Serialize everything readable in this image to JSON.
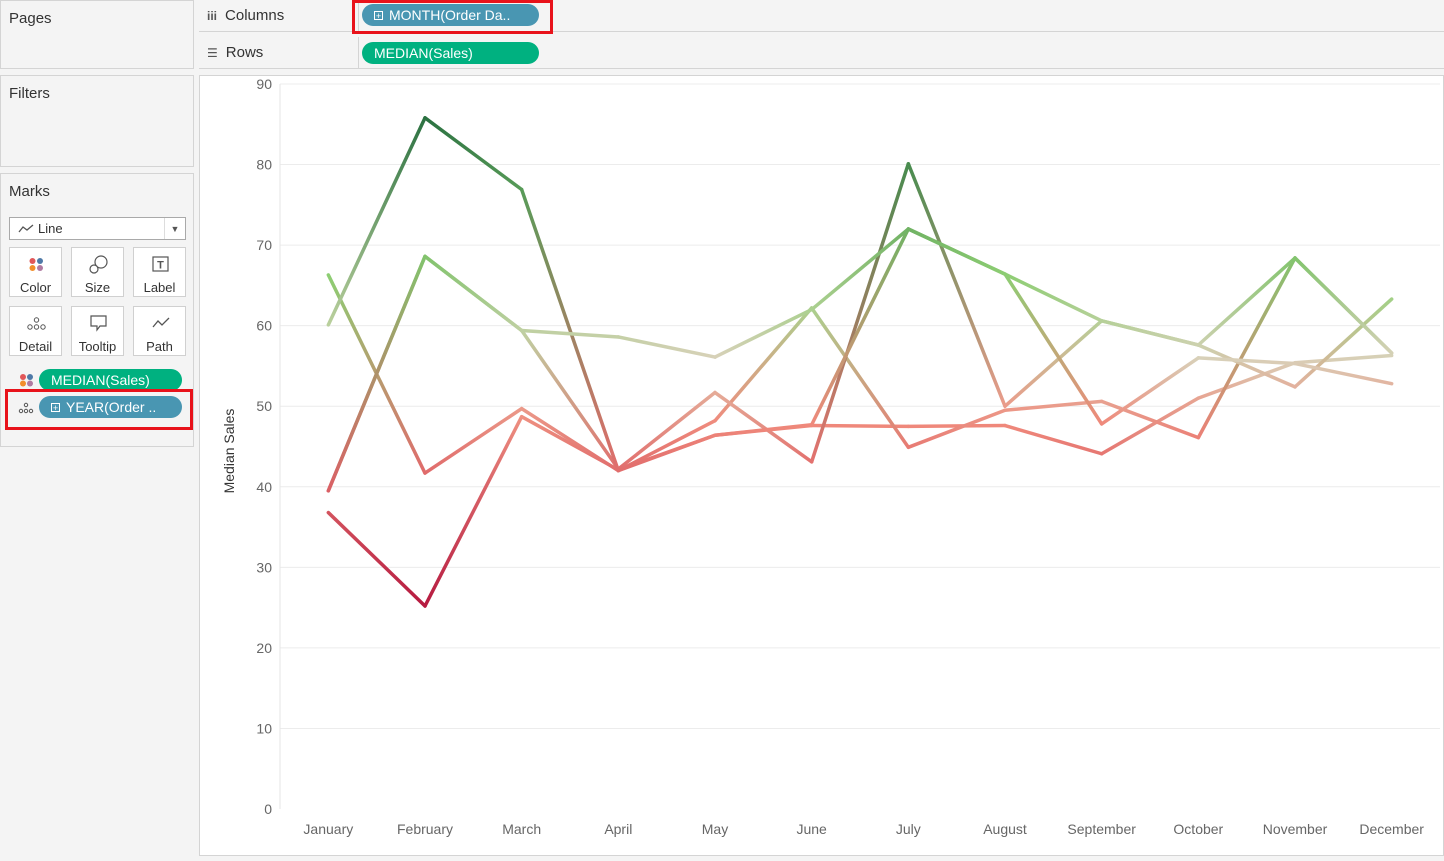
{
  "cards": {
    "pages": "Pages",
    "filters": "Filters",
    "marks": "Marks"
  },
  "marks": {
    "type": "Line",
    "buttons": [
      {
        "label": "Color",
        "icon": "color-dots-icon"
      },
      {
        "label": "Size",
        "icon": "size-circles-icon"
      },
      {
        "label": "Label",
        "icon": "text-label-icon"
      },
      {
        "label": "Detail",
        "icon": "detail-dots-icon"
      },
      {
        "label": "Tooltip",
        "icon": "tooltip-bubble-icon"
      },
      {
        "label": "Path",
        "icon": "path-line-icon"
      }
    ],
    "fields": [
      {
        "label": "MEDIAN(Sales)",
        "encoding": "color"
      },
      {
        "label": "YEAR(Order ..",
        "encoding": "detail"
      }
    ]
  },
  "shelves": {
    "columns_label": "Columns",
    "columns_pill": "MONTH(Order Da..",
    "rows_label": "Rows",
    "rows_pill": "MEDIAN(Sales)"
  },
  "colors": {
    "green_pill": "#00b180",
    "blue_pill": "#4996b2",
    "highlight": "#e8131b",
    "scale_low": "#b5193f",
    "scale_mid_low": "#f08a7c",
    "scale_mid": "#d8d1b9",
    "scale_mid_high": "#8fcf74",
    "scale_high": "#2a7040"
  },
  "chart_data": {
    "type": "line",
    "ylabel": "Median Sales",
    "ylim": [
      0,
      90
    ],
    "yticks": [
      0,
      10,
      20,
      30,
      40,
      50,
      60,
      70,
      80,
      90
    ],
    "categories": [
      "January",
      "February",
      "March",
      "April",
      "May",
      "June",
      "July",
      "August",
      "September",
      "October",
      "November",
      "December"
    ],
    "series": [
      {
        "values": [
          36.8,
          25.2,
          48.7,
          42.1,
          46.4,
          47.6,
          47.5,
          47.6,
          44.1,
          51.0,
          55.4,
          56.3
        ]
      },
      {
        "values": [
          66.3,
          41.7,
          49.7,
          42.0,
          48.2,
          62.2,
          44.9,
          49.5,
          50.6,
          46.1,
          68.4,
          56.6
        ]
      },
      {
        "values": [
          39.5,
          68.6,
          59.4,
          42.2,
          51.7,
          43.1,
          80.1,
          50.0,
          60.6,
          57.6,
          52.4,
          63.3
        ]
      },
      {
        "values": [
          60.1,
          85.8,
          76.9,
          42.0,
          46.4,
          47.7,
          72.0,
          66.4,
          47.8,
          56.0,
          55.3,
          52.8
        ]
      },
      {
        "values": [
          39.5,
          68.6,
          59.4,
          58.6,
          56.1,
          62.0,
          72.0,
          66.4,
          60.6,
          57.6,
          68.4,
          56.6
        ]
      }
    ]
  }
}
